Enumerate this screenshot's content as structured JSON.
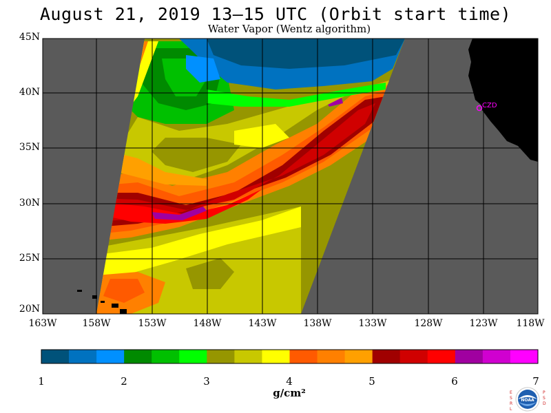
{
  "title": "August 21, 2019  13–15 UTC  (Orbit start time)",
  "subtitle": "Water Vapor (Wentz algorithm)",
  "map": {
    "lat_labels": [
      "45N",
      "40N",
      "35N",
      "30N",
      "25N",
      "20N"
    ],
    "lon_labels": [
      "163W",
      "158W",
      "153W",
      "148W",
      "143W",
      "138W",
      "133W",
      "128W",
      "123W",
      "118W"
    ],
    "station_label": "CZD",
    "colors": {
      "no_data": "#5a5a5a",
      "land": "#000000",
      "grid": "#000000",
      "station": "#ff00ff"
    }
  },
  "colorbar": {
    "colors": [
      "#00527a",
      "#0072c0",
      "#0090ff",
      "#008a00",
      "#00c000",
      "#00ff00",
      "#969600",
      "#c8c800",
      "#ffff00",
      "#ff5a00",
      "#ff8000",
      "#ffa000",
      "#a00000",
      "#d00000",
      "#ff0000",
      "#a000a0",
      "#d000d0",
      "#ff00ff"
    ],
    "tick_labels": [
      "1",
      "2",
      "3",
      "4",
      "5",
      "6",
      "7"
    ],
    "units": "g/cm²"
  },
  "logo": {
    "left_letters": "ESRL",
    "right_letters": "PSD",
    "center_text": "NOAA"
  }
}
